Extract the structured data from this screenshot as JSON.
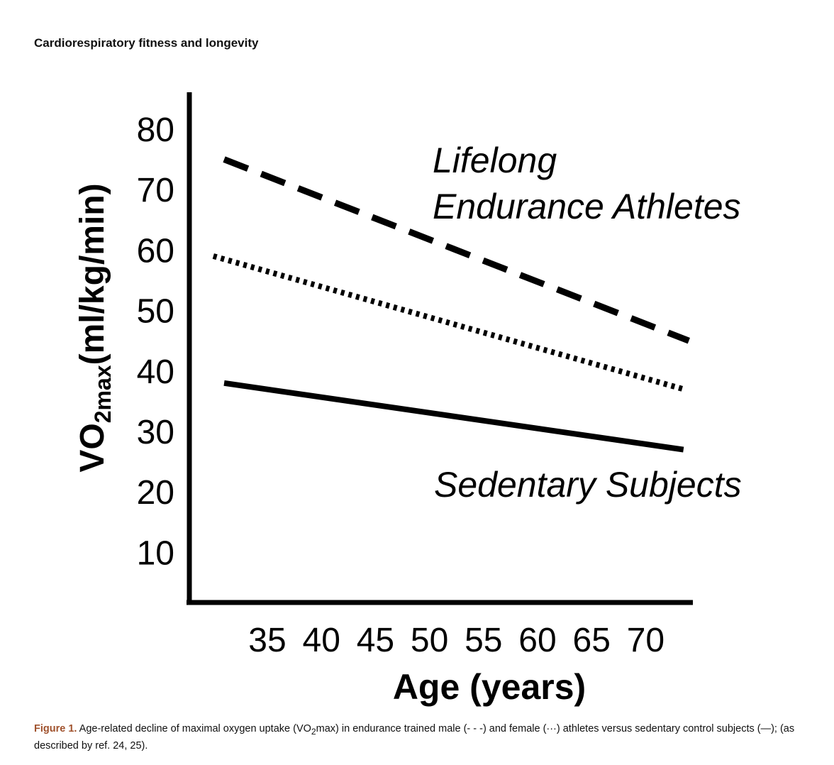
{
  "header": {
    "running_title": "Cardiorespiratory fitness and longevity"
  },
  "chart_data": {
    "type": "line",
    "xlabel": "Age (years)",
    "ylabel": {
      "main": "VO",
      "sub": "2max",
      "unit": "(ml/kg/min)"
    },
    "x_ticks": [
      35,
      40,
      45,
      50,
      55,
      60,
      65,
      70
    ],
    "y_ticks": [
      10,
      20,
      30,
      40,
      50,
      60,
      70,
      80
    ],
    "xlim": [
      30,
      75
    ],
    "ylim": [
      0,
      85
    ],
    "grid": false,
    "series": [
      {
        "style": "dashed",
        "x": [
          31,
          74
        ],
        "y": [
          75,
          45
        ]
      },
      {
        "style": "dotted",
        "x": [
          30,
          73.5
        ],
        "y": [
          59,
          37
        ]
      },
      {
        "style": "solid",
        "x": [
          31,
          73.5
        ],
        "y": [
          38,
          27
        ]
      }
    ],
    "annotations": {
      "athletes_line1": "Lifelong",
      "athletes_line2": "Endurance Athletes",
      "sedentary": "Sedentary Subjects"
    },
    "line_color": "#000000"
  },
  "caption": {
    "label": "Figure 1.",
    "text_before_sub": " Age-related decline of maximal oxygen uptake (VO",
    "sub": "2",
    "text_after_sub": "max) in endurance trained male (- - -) and female (···) athletes versus sedentary control subjects (—); (as described by ref. 24, 25).",
    "label_color": "#a0522d"
  }
}
